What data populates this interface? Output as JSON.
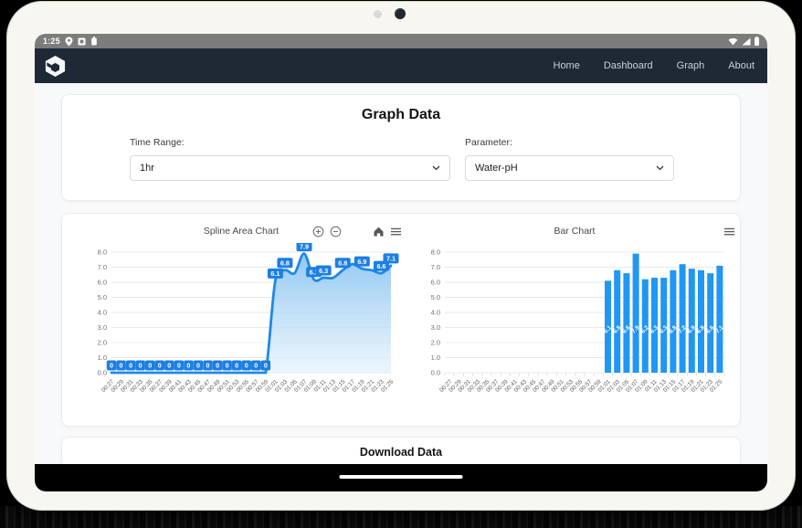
{
  "device": {
    "status_bar": {
      "time": "1:25",
      "left_icons": [
        "location-icon",
        "pip-icon",
        "sim-icon"
      ],
      "right_icons": [
        "wifi-icon",
        "cellular-signal-icon",
        "battery-icon"
      ]
    }
  },
  "navbar": {
    "logo": "cube-logo",
    "links": [
      {
        "label": "Home"
      },
      {
        "label": "Dashboard"
      },
      {
        "label": "Graph"
      },
      {
        "label": "About"
      }
    ]
  },
  "page": {
    "title": "Graph Data"
  },
  "filters": {
    "time_range": {
      "label": "Time Range:",
      "value": "1hr"
    },
    "parameter": {
      "label": "Parameter:",
      "value": "Water-pH"
    }
  },
  "download": {
    "title": "Download Data"
  },
  "colors": {
    "bar_blue": "#2196f3",
    "line_blue": "#1e88e5",
    "datalabel_bg": "#1c7fe2",
    "area_fill_top": "#86c1f2",
    "area_fill_bottom": "#e3f1fc",
    "navbar_bg": "#1f2936",
    "statusbar_bg": "#7c7c7c"
  },
  "chart_data": [
    {
      "type": "area",
      "title": "Spline Area Chart",
      "xlabel": "",
      "ylabel": "",
      "ylim": [
        0,
        8
      ],
      "ytick_step": 1,
      "grid": true,
      "legend": "none",
      "data_labels": true,
      "categories": [
        "00:27",
        "00:29",
        "00:31",
        "00:33",
        "00:35",
        "00:37",
        "00:39",
        "00:41",
        "00:43",
        "00:45",
        "00:47",
        "00:49",
        "00:51",
        "00:53",
        "00:55",
        "00:57",
        "00:59",
        "01:01",
        "01:03",
        "01:05",
        "01:07",
        "01:09",
        "01:11",
        "01:13",
        "01:15",
        "01:17",
        "01:19",
        "01:21",
        "01:23",
        "01:25"
      ],
      "values": [
        0,
        0,
        0,
        0,
        0,
        0,
        0,
        0,
        0,
        0,
        0,
        0,
        0,
        0,
        0,
        0,
        0,
        6.1,
        6.8,
        6.6,
        7.9,
        6.2,
        6.3,
        6.3,
        6.8,
        7.2,
        6.9,
        6.8,
        6.6,
        7.1
      ],
      "hidden_label_indices": [
        19,
        23,
        25,
        27
      ],
      "toolbar": [
        "zoom-in",
        "zoom-out",
        "home",
        "menu"
      ]
    },
    {
      "type": "bar",
      "title": "Bar Chart",
      "xlabel": "",
      "ylabel": "",
      "ylim": [
        0,
        8
      ],
      "ytick_step": 1,
      "grid": true,
      "legend": "none",
      "data_labels": true,
      "categories": [
        "00:27",
        "00:29",
        "00:31",
        "00:33",
        "00:35",
        "00:37",
        "00:39",
        "00:41",
        "00:43",
        "00:45",
        "00:47",
        "00:49",
        "00:51",
        "00:53",
        "00:55",
        "00:57",
        "00:59",
        "01:01",
        "01:03",
        "01:05",
        "01:07",
        "01:09",
        "01:11",
        "01:13",
        "01:15",
        "01:17",
        "01:19",
        "01:21",
        "01:23",
        "01:25"
      ],
      "values": [
        0,
        0,
        0,
        0,
        0,
        0,
        0,
        0,
        0,
        0,
        0,
        0,
        0,
        0,
        0,
        0,
        0,
        6.1,
        6.8,
        6.6,
        7.9,
        6.2,
        6.3,
        6.3,
        6.8,
        7.2,
        6.9,
        6.8,
        6.6,
        7.1
      ],
      "toolbar": [
        "menu"
      ]
    }
  ]
}
